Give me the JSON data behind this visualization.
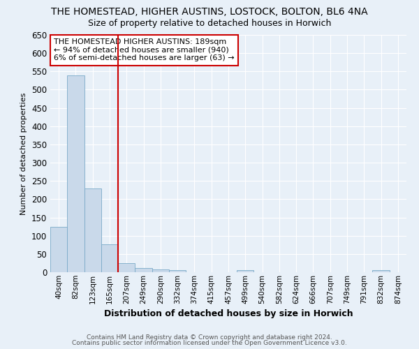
{
  "title": "THE HOMESTEAD, HIGHER AUSTINS, LOSTOCK, BOLTON, BL6 4NA",
  "subtitle": "Size of property relative to detached houses in Horwich",
  "xlabel": "Distribution of detached houses by size in Horwich",
  "ylabel": "Number of detached properties",
  "footnote1": "Contains HM Land Registry data © Crown copyright and database right 2024.",
  "footnote2": "Contains public sector information licensed under the Open Government Licence v3.0.",
  "annotation_line1": "THE HOMESTEAD HIGHER AUSTINS: 189sqm",
  "annotation_line2": "← 94% of detached houses are smaller (940)",
  "annotation_line3": "6% of semi-detached houses are larger (63) →",
  "bar_labels": [
    "40sqm",
    "82sqm",
    "123sqm",
    "165sqm",
    "207sqm",
    "249sqm",
    "290sqm",
    "332sqm",
    "374sqm",
    "415sqm",
    "457sqm",
    "499sqm",
    "540sqm",
    "582sqm",
    "624sqm",
    "666sqm",
    "707sqm",
    "749sqm",
    "791sqm",
    "832sqm",
    "874sqm"
  ],
  "bar_values": [
    125,
    540,
    230,
    77,
    25,
    11,
    8,
    6,
    0,
    0,
    0,
    6,
    0,
    0,
    0,
    0,
    0,
    0,
    0,
    5,
    0
  ],
  "bar_color": "#c9d9ea",
  "bar_edge_color": "#7aaac8",
  "vline_x_index": 3.5,
  "vline_color": "#cc0000",
  "background_color": "#e8f0f8",
  "ylim": [
    0,
    650
  ],
  "yticks": [
    0,
    50,
    100,
    150,
    200,
    250,
    300,
    350,
    400,
    450,
    500,
    550,
    600,
    650
  ],
  "grid_color": "#ffffff",
  "annotation_box_color": "#ffffff",
  "annotation_box_edge": "#cc0000",
  "title_fontsize": 10,
  "subtitle_fontsize": 9
}
